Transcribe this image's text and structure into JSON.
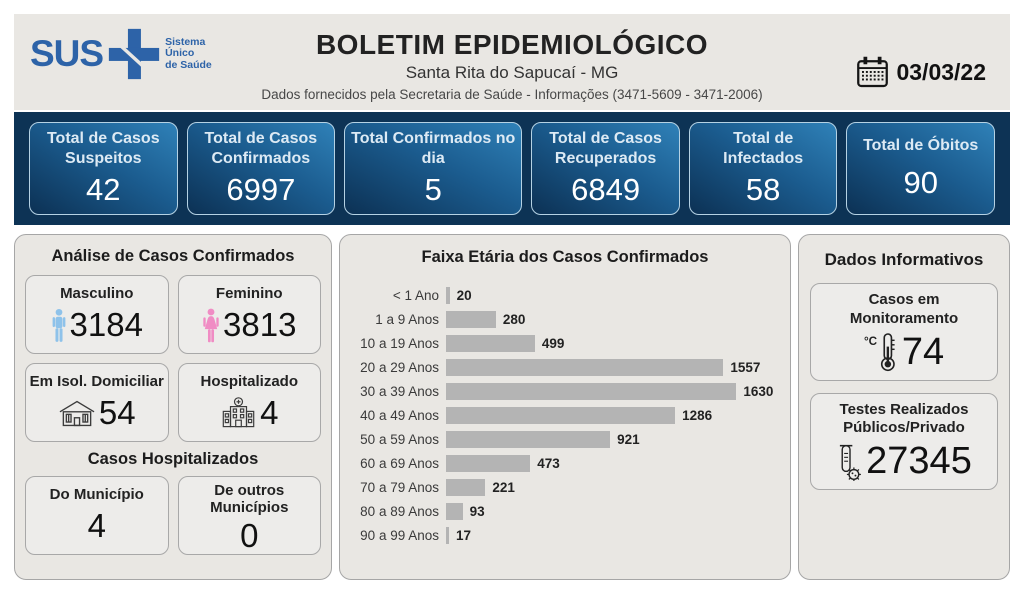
{
  "header": {
    "logo": {
      "sus_text": "SUS",
      "tagline_line1": "Sistema",
      "tagline_line2": "Único",
      "tagline_line3": "de Saúde"
    },
    "title": "BOLETIM EPIDEMIOLÓGICO",
    "subtitle": "Santa Rita do Sapucaí - MG",
    "info_line": "Dados fornecidos pela Secretaria de Saúde - Informações (3471-5609 - 3471-2006)",
    "date": "03/03/22"
  },
  "stats": [
    {
      "label": "Total de Casos Suspeitos",
      "value": "42"
    },
    {
      "label": "Total de Casos Confirmados",
      "value": "6997"
    },
    {
      "label": "Total Confirmados no dia",
      "value": "5"
    },
    {
      "label": "Total de Casos Recuperados",
      "value": "6849"
    },
    {
      "label": "Total de Infectados",
      "value": "58"
    },
    {
      "label": "Total de Óbitos",
      "value": "90"
    }
  ],
  "analysis": {
    "title": "Análise de Casos Confirmados",
    "gender_cards": [
      {
        "label": "Masculino",
        "value": "3184",
        "icon": "male-icon"
      },
      {
        "label": "Feminino",
        "value": "3813",
        "icon": "female-icon"
      }
    ],
    "status_cards": [
      {
        "label": "Em Isol. Domiciliar",
        "value": "54",
        "icon": "house-icon"
      },
      {
        "label": "Hospitalizado",
        "value": "4",
        "icon": "hospital-icon"
      }
    ],
    "hospitalized_title": "Casos Hospitalizados",
    "hospitalized_cards": [
      {
        "label": "Do Município",
        "value": "4"
      },
      {
        "label": "De outros Municípios",
        "value": "0"
      }
    ]
  },
  "chart_data": {
    "type": "bar",
    "orientation": "horizontal",
    "title": "Faixa Etária dos Casos Confirmados",
    "categories": [
      "< 1 Ano",
      "1 a 9 Anos",
      "10 a 19 Anos",
      "20 a 29 Anos",
      "30 a 39 Anos",
      "40 a 49 Anos",
      "50 a 59 Anos",
      "60 a 69 Anos",
      "70 a 79 Anos",
      "80 a 89 Anos",
      "90 a 99 Anos"
    ],
    "values": [
      20,
      280,
      499,
      1557,
      1630,
      1286,
      921,
      473,
      221,
      93,
      17
    ],
    "xlim": [
      0,
      1700
    ],
    "bar_color": "#b4b4b4",
    "value_labels": true,
    "grid": false,
    "legend": false
  },
  "info_panel": {
    "title": "Dados Informativos",
    "cards": [
      {
        "label": "Casos em Monitoramento",
        "value": "74",
        "icon": "thermometer-icon"
      },
      {
        "label": "Testes Realizados Públicos/Privado",
        "value": "27345",
        "icon": "test-tube-icon"
      }
    ]
  },
  "colors": {
    "sus_blue": "#2d63a8",
    "navy_band": "#0d3355",
    "stat_card_gradient_dark": "#0c3154",
    "stat_card_gradient_light": "#2f81b8",
    "stat_card_border": "#b5d2e4",
    "panel_bg": "#e9e7e3",
    "bar_fill": "#b4b4b4",
    "male_icon_color": "#8ec2ea",
    "female_icon_color": "#f08cc4"
  }
}
